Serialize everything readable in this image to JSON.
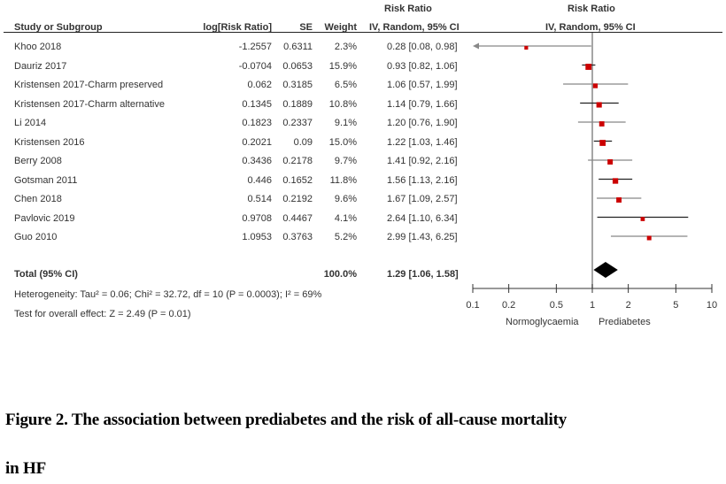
{
  "header": {
    "group_top_left": "Risk Ratio",
    "group_top_right": "Risk Ratio",
    "col_study": "Study or Subgroup",
    "col_logrr": "log[Risk Ratio]",
    "col_se": "SE",
    "col_weight": "Weight",
    "col_ci": "IV, Random, 95% CI",
    "col_plot": "IV, Random, 95% CI"
  },
  "total": {
    "label": "Total (95% CI)",
    "weight": "100.0%",
    "ci_text": "1.29 [1.06, 1.58]",
    "rr": 1.29,
    "lo": 1.06,
    "hi": 1.58
  },
  "heterogeneity": "Heterogeneity: Tau² = 0.06; Chi² = 32.72, df = 10 (P = 0.0003); I² = 69%",
  "overall_effect": "Test for overall effect: Z = 2.49 (P = 0.01)",
  "axis": {
    "favours_left": "Normoglycaemia",
    "favours_right": "Prediabetes"
  },
  "caption": {
    "line1": "Figure 2. The association between prediabetes and the risk of all-cause mortality",
    "line2": "in HF"
  },
  "colors": {
    "marker": "#cc0000",
    "ci_dark": "#222222",
    "ci_gray": "#888888",
    "axis": "#333333",
    "null_line": "#888888"
  },
  "chart_data": {
    "type": "forest",
    "title": "Risk Ratio IV, Random, 95% CI",
    "xscale": "log",
    "xlim": [
      0.1,
      10
    ],
    "xticks": [
      0.1,
      0.2,
      0.5,
      1,
      2,
      5,
      10
    ],
    "xtick_labels": [
      "0.1",
      "0.2",
      "0.5",
      "1",
      "2",
      "5",
      "10"
    ],
    "null_value": 1,
    "xlabel_left": "Normoglycaemia",
    "xlabel_right": "Prediabetes",
    "studies": [
      {
        "name": "Khoo 2018",
        "logrr": "-1.2557",
        "se": "0.6311",
        "weight": "2.3%",
        "ci_text": "0.28 [0.08, 0.98]",
        "rr": 0.28,
        "lo": 0.08,
        "hi": 0.98,
        "w": 2.3
      },
      {
        "name": "Dauriz 2017",
        "logrr": "-0.0704",
        "se": "0.0653",
        "weight": "15.9%",
        "ci_text": "0.93 [0.82, 1.06]",
        "rr": 0.93,
        "lo": 0.82,
        "hi": 1.06,
        "w": 15.9
      },
      {
        "name": "Kristensen 2017-Charm preserved",
        "logrr": "0.062",
        "se": "0.3185",
        "weight": "6.5%",
        "ci_text": "1.06 [0.57, 1.99]",
        "rr": 1.06,
        "lo": 0.57,
        "hi": 1.99,
        "w": 6.5
      },
      {
        "name": "Kristensen 2017-Charm alternative",
        "logrr": "0.1345",
        "se": "0.1889",
        "weight": "10.8%",
        "ci_text": "1.14 [0.79, 1.66]",
        "rr": 1.14,
        "lo": 0.79,
        "hi": 1.66,
        "w": 10.8
      },
      {
        "name": "Li 2014",
        "logrr": "0.1823",
        "se": "0.2337",
        "weight": "9.1%",
        "ci_text": "1.20 [0.76, 1.90]",
        "rr": 1.2,
        "lo": 0.76,
        "hi": 1.9,
        "w": 9.1
      },
      {
        "name": "Kristensen 2016",
        "logrr": "0.2021",
        "se": "0.09",
        "weight": "15.0%",
        "ci_text": "1.22 [1.03, 1.46]",
        "rr": 1.22,
        "lo": 1.03,
        "hi": 1.46,
        "w": 15.0
      },
      {
        "name": "Berry 2008",
        "logrr": "0.3436",
        "se": "0.2178",
        "weight": "9.7%",
        "ci_text": "1.41 [0.92, 2.16]",
        "rr": 1.41,
        "lo": 0.92,
        "hi": 2.16,
        "w": 9.7
      },
      {
        "name": "Gotsman 2011",
        "logrr": "0.446",
        "se": "0.1652",
        "weight": "11.8%",
        "ci_text": "1.56 [1.13, 2.16]",
        "rr": 1.56,
        "lo": 1.13,
        "hi": 2.16,
        "w": 11.8
      },
      {
        "name": "Chen 2018",
        "logrr": "0.514",
        "se": "0.2192",
        "weight": "9.6%",
        "ci_text": "1.67 [1.09, 2.57]",
        "rr": 1.67,
        "lo": 1.09,
        "hi": 2.57,
        "w": 9.6
      },
      {
        "name": "Pavlovic 2019",
        "logrr": "0.9708",
        "se": "0.4467",
        "weight": "4.1%",
        "ci_text": "2.64 [1.10, 6.34]",
        "rr": 2.64,
        "lo": 1.1,
        "hi": 6.34,
        "w": 4.1
      },
      {
        "name": "Guo 2010",
        "logrr": "1.0953",
        "se": "0.3763",
        "weight": "5.2%",
        "ci_text": "2.99 [1.43, 6.25]",
        "rr": 2.99,
        "lo": 1.43,
        "hi": 6.25,
        "w": 5.2
      }
    ],
    "pooled": {
      "label": "Total (95% CI)",
      "rr": 1.29,
      "lo": 1.06,
      "hi": 1.58,
      "weight": "100.0%"
    }
  }
}
